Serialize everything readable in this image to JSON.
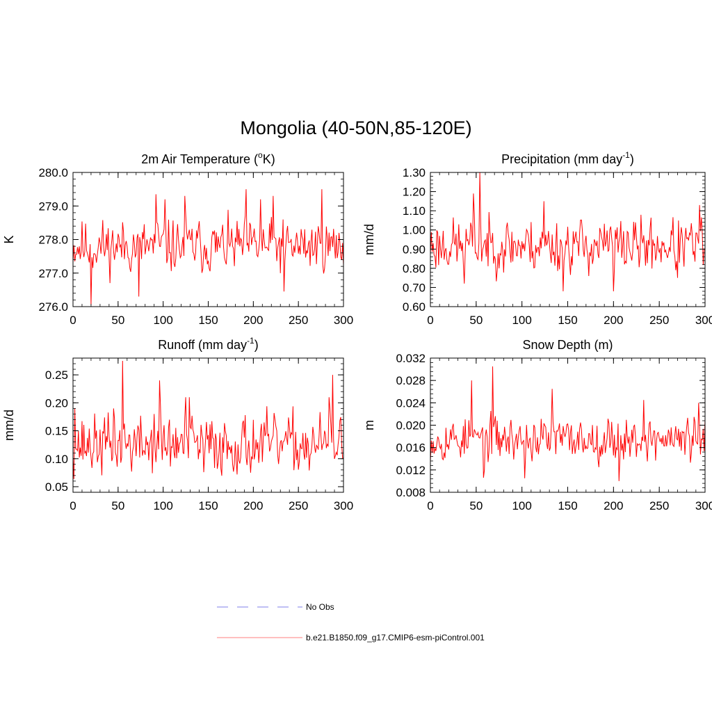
{
  "figure": {
    "title": "Mongolia (40-50N,85-120E)"
  },
  "legend": {
    "items": [
      {
        "label": "No Obs",
        "style": "dashed",
        "color": "#9999ee"
      },
      {
        "label": "b.e21.B1850.f09_g17.CMIP6-esm-piControl.001",
        "style": "solid",
        "color": "#ff9999"
      }
    ]
  },
  "chart_data": [
    {
      "type": "line",
      "title_main": "2m Air Temperature (",
      "title_sup": "o",
      "title_end": "K)",
      "ylabel": "K",
      "xlabel": "",
      "xlim": [
        0,
        300
      ],
      "ylim": [
        276.0,
        280.0
      ],
      "xticks": [
        0,
        50,
        100,
        150,
        200,
        250,
        300
      ],
      "xtick_labels": [
        "0",
        "50",
        "100",
        "150",
        "200",
        "250",
        "300"
      ],
      "yticks": [
        276.0,
        277.0,
        278.0,
        279.0,
        280.0
      ],
      "ytick_labels": [
        "276.0",
        "277.0",
        "278.0",
        "279.0",
        "280.0"
      ],
      "line_color": "#ff0000",
      "series_name": "b.e21.B1850.f09_g17.CMIP6-esm-piControl.001",
      "base": 277.8,
      "amp": 0.45,
      "spikes": [
        [
          20,
          276.05
        ],
        [
          73,
          276.3
        ],
        [
          92,
          279.35
        ],
        [
          102,
          279.2
        ],
        [
          124,
          279.3
        ],
        [
          192,
          279.5
        ],
        [
          208,
          279.2
        ],
        [
          234,
          276.45
        ],
        [
          276,
          279.5
        ],
        [
          222,
          279.3
        ]
      ],
      "seed": 11
    },
    {
      "type": "line",
      "title_main": "Precipitation (mm day",
      "title_sup": "-1",
      "title_end": ")",
      "ylabel": "mm/d",
      "xlabel": "",
      "xlim": [
        0,
        300
      ],
      "ylim": [
        0.6,
        1.3
      ],
      "xticks": [
        0,
        50,
        100,
        150,
        200,
        250,
        300
      ],
      "xtick_labels": [
        "0",
        "50",
        "100",
        "150",
        "200",
        "250",
        "300"
      ],
      "yticks": [
        0.6,
        0.7,
        0.8,
        0.9,
        1.0,
        1.1,
        1.2,
        1.3
      ],
      "ytick_labels": [
        "0.60",
        "0.70",
        "0.80",
        "0.90",
        "1.00",
        "1.10",
        "1.20",
        "1.30"
      ],
      "line_color": "#ff0000",
      "series_name": "b.e21.B1850.f09_g17.CMIP6-esm-piControl.001",
      "base": 0.92,
      "amp": 0.08,
      "spikes": [
        [
          54,
          1.3
        ],
        [
          47,
          1.19
        ],
        [
          124,
          1.15
        ],
        [
          145,
          0.68
        ],
        [
          200,
          0.68
        ],
        [
          294,
          1.13
        ],
        [
          37,
          0.72
        ],
        [
          270,
          0.75
        ]
      ],
      "seed": 23
    },
    {
      "type": "line",
      "title_main": "Runoff (mm day",
      "title_sup": "-1",
      "title_end": ")",
      "ylabel": "mm/d",
      "xlabel": "",
      "xlim": [
        0,
        300
      ],
      "ylim": [
        0.04,
        0.28
      ],
      "xticks": [
        0,
        50,
        100,
        150,
        200,
        250,
        300
      ],
      "xtick_labels": [
        "0",
        "50",
        "100",
        "150",
        "200",
        "250",
        "300"
      ],
      "yticks": [
        0.05,
        0.1,
        0.15,
        0.2,
        0.25
      ],
      "ytick_labels": [
        "0.05",
        "0.10",
        "0.15",
        "0.20",
        "0.25"
      ],
      "line_color": "#ff0000",
      "series_name": "b.e21.B1850.f09_g17.CMIP6-esm-piControl.001",
      "base": 0.125,
      "amp": 0.03,
      "spikes": [
        [
          55,
          0.275
        ],
        [
          96,
          0.24
        ],
        [
          125,
          0.21
        ],
        [
          129,
          0.21
        ],
        [
          288,
          0.25
        ],
        [
          284,
          0.21
        ],
        [
          45,
          0.19
        ],
        [
          2,
          0.19
        ],
        [
          145,
          0.076
        ],
        [
          90,
          0.18
        ]
      ],
      "seed": 37
    },
    {
      "type": "line",
      "title_main": "Snow Depth (m)",
      "title_sup": "",
      "title_end": "",
      "ylabel": "m",
      "xlabel": "",
      "xlim": [
        0,
        300
      ],
      "ylim": [
        0.008,
        0.032
      ],
      "xticks": [
        0,
        50,
        100,
        150,
        200,
        250,
        300
      ],
      "xtick_labels": [
        "0",
        "50",
        "100",
        "150",
        "200",
        "250",
        "300"
      ],
      "yticks": [
        0.008,
        0.012,
        0.016,
        0.02,
        0.024,
        0.028,
        0.032
      ],
      "ytick_labels": [
        "0.008",
        "0.012",
        "0.016",
        "0.020",
        "0.024",
        "0.028",
        "0.032"
      ],
      "line_color": "#ff0000",
      "series_name": "b.e21.B1850.f09_g17.CMIP6-esm-piControl.001",
      "base": 0.0175,
      "amp": 0.0022,
      "spikes": [
        [
          68,
          0.0305
        ],
        [
          45,
          0.028
        ],
        [
          133,
          0.0265
        ],
        [
          233,
          0.0245
        ],
        [
          103,
          0.0105
        ],
        [
          206,
          0.01
        ],
        [
          58,
          0.0106
        ],
        [
          293,
          0.024
        ]
      ],
      "seed": 53
    }
  ]
}
